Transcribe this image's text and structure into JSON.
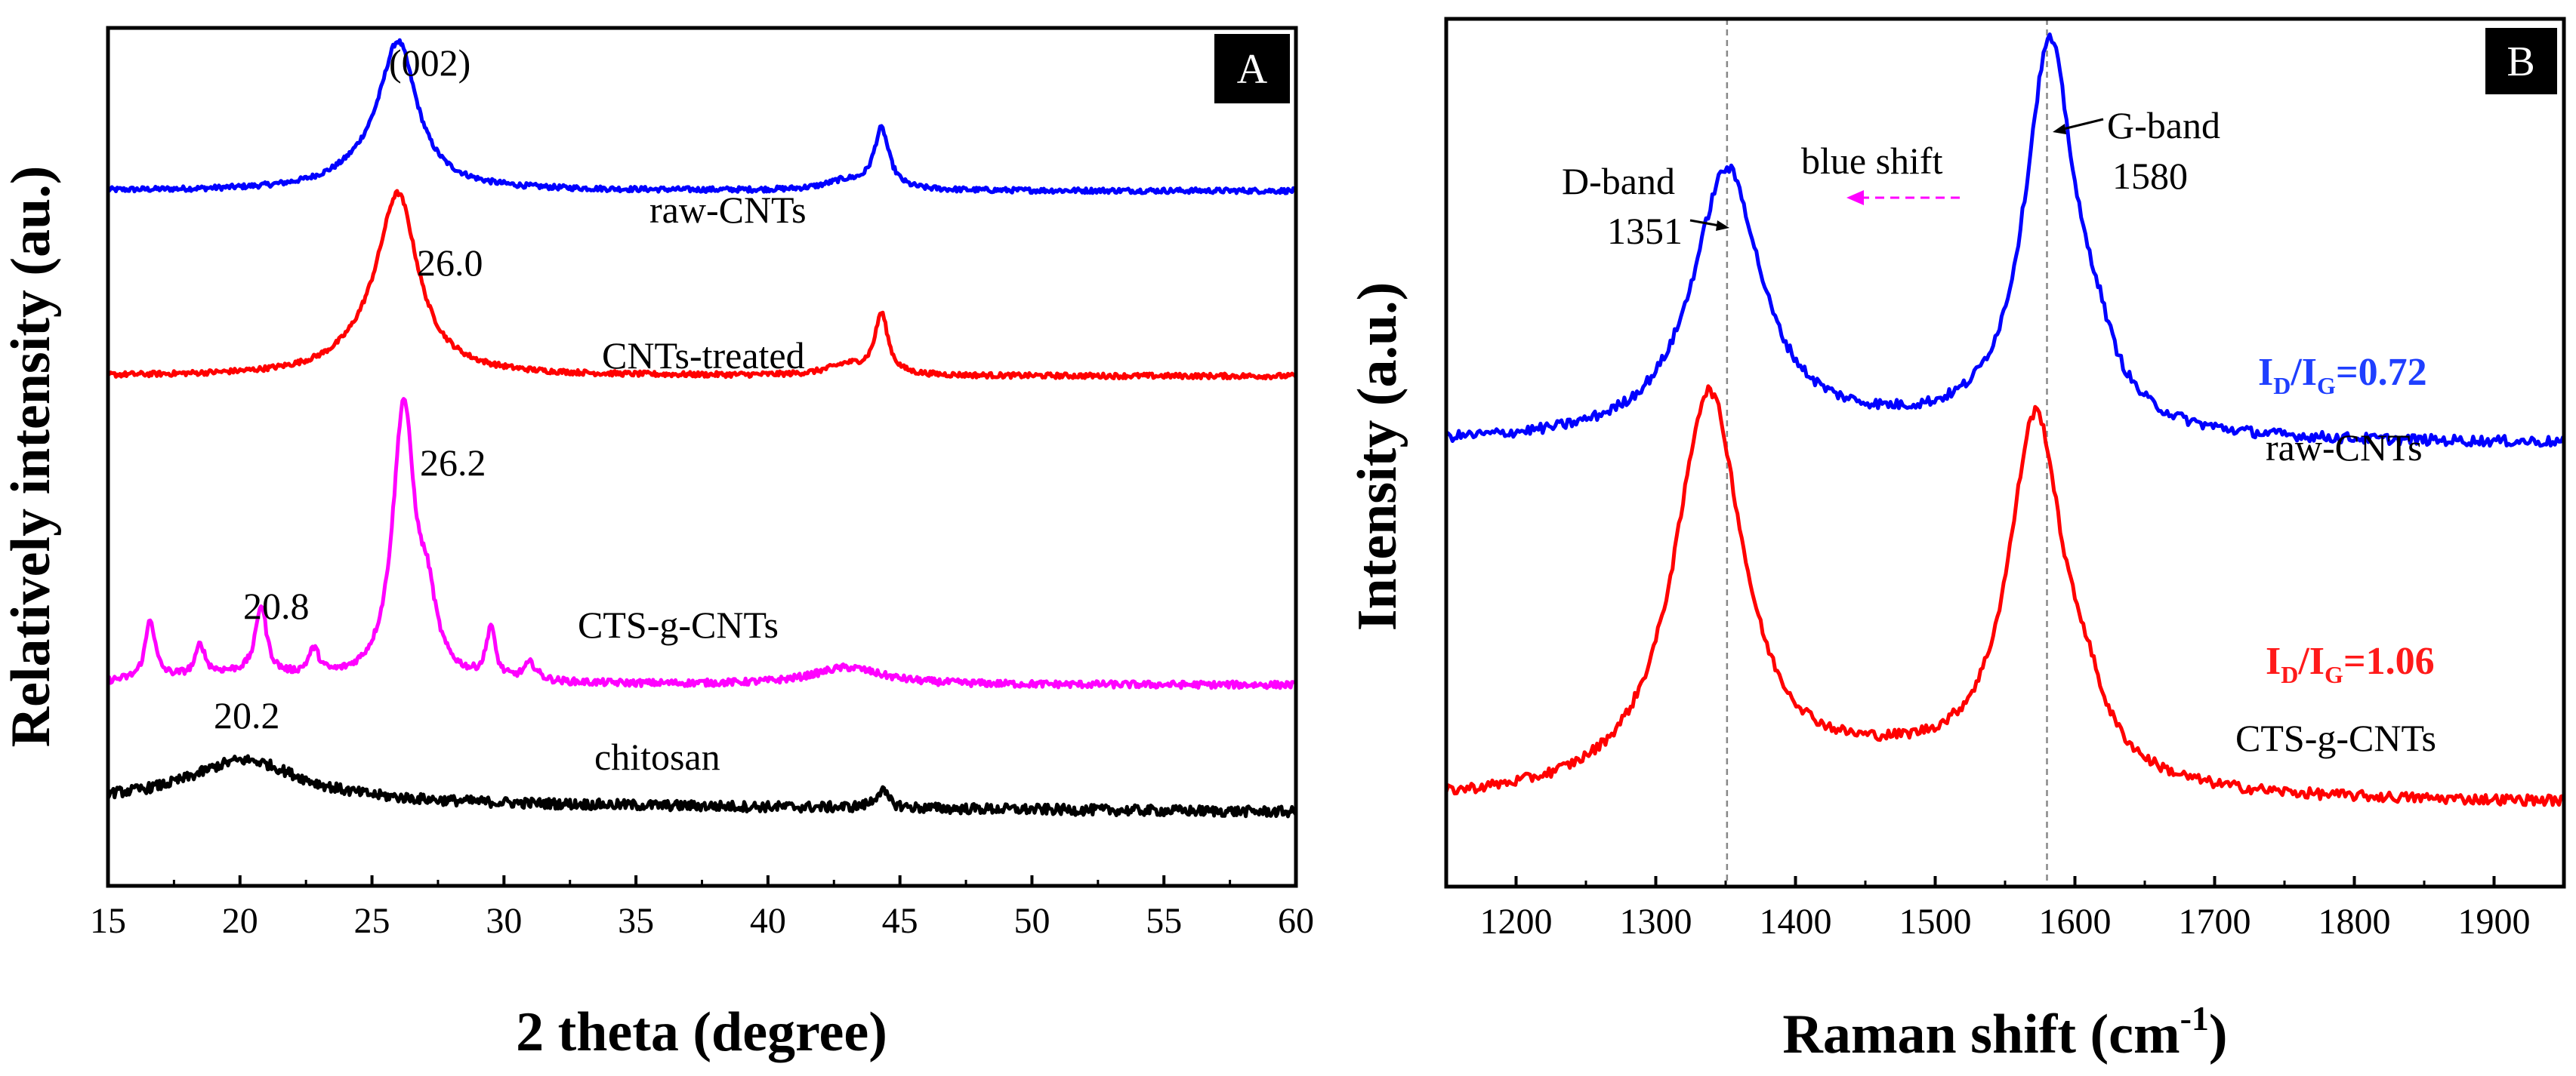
{
  "chart_data": [
    {
      "panel": "A",
      "type": "line",
      "xlabel": "2 theta (degree)",
      "ylabel": "Relatively intensity (au.)",
      "xlim": [
        15,
        60
      ],
      "ylim": [
        0,
        1
      ],
      "xticks": [
        15,
        20,
        25,
        30,
        35,
        40,
        45,
        50,
        55,
        60
      ],
      "yticks_shown": false,
      "series": [
        {
          "name": "raw-CNTs",
          "color": "#0000ff",
          "baseline": 0.81,
          "noise": 0.003,
          "peaks": [
            {
              "x": 26.0,
              "height": 0.16,
              "width": 0.85
            },
            {
              "x": 25.0,
              "height": 0.02,
              "width": 1.6
            },
            {
              "x": 42.9,
              "height": 0.01,
              "width": 0.9
            },
            {
              "x": 44.3,
              "height": 0.07,
              "width": 0.35
            }
          ]
        },
        {
          "name": "CNTs-treated",
          "color": "#ff0000",
          "baseline": 0.594,
          "noise": 0.003,
          "peaks": [
            {
              "x": 26.0,
              "height": 0.19,
              "width": 0.9
            },
            {
              "x": 25.2,
              "height": 0.03,
              "width": 1.5
            },
            {
              "x": 43.0,
              "height": 0.012,
              "width": 0.9
            },
            {
              "x": 44.3,
              "height": 0.07,
              "width": 0.3
            }
          ]
        },
        {
          "name": "CTS-g-CNTs",
          "color": "#ff00ff",
          "baseline": 0.234,
          "noise": 0.004,
          "peaks": [
            {
              "x": 16.6,
              "height": 0.07,
              "width": 0.22
            },
            {
              "x": 18.5,
              "height": 0.035,
              "width": 0.2
            },
            {
              "x": 20.8,
              "height": 0.08,
              "width": 0.25
            },
            {
              "x": 22.8,
              "height": 0.03,
              "width": 0.25
            },
            {
              "x": 26.2,
              "height": 0.32,
              "width": 0.5
            },
            {
              "x": 27.1,
              "height": 0.07,
              "width": 0.4
            },
            {
              "x": 29.5,
              "height": 0.06,
              "width": 0.2
            },
            {
              "x": 31.0,
              "height": 0.02,
              "width": 0.3
            },
            {
              "x": 43.0,
              "height": 0.02,
              "width": 1.6
            },
            {
              "x": 19.5,
              "height": 0.012,
              "width": 3.0
            }
          ]
        },
        {
          "name": "chitosan",
          "color": "#000000",
          "baseline": 0.098,
          "noise": 0.006,
          "peaks": [
            {
              "x": 20.2,
              "height": 0.05,
              "width": 2.6
            },
            {
              "x": 44.3,
              "height": 0.02,
              "width": 0.3
            }
          ]
        }
      ],
      "annotations": [
        "(002)",
        "26.0",
        "26.2",
        "20.8",
        "20.2"
      ],
      "panel_label": "A"
    },
    {
      "panel": "B",
      "type": "line",
      "xlabel": "Raman shift (cm",
      "xlabel_sup": "-1",
      "xlabel_end": ")",
      "ylabel": "Intensity (a.u.)",
      "xlim": [
        1150,
        1950
      ],
      "ylim": [
        0,
        1
      ],
      "xticks": [
        1200,
        1300,
        1400,
        1500,
        1600,
        1700,
        1800,
        1900
      ],
      "yticks_shown": false,
      "reference_lines": [
        1351,
        1580
      ],
      "series": [
        {
          "name": "raw-CNTs",
          "color": "#0000ff",
          "baseline": 0.51,
          "noise": 0.006,
          "peaks": [
            {
              "x": 1351,
              "height": 0.31,
              "width": 30
            },
            {
              "x": 1582,
              "height": 0.45,
              "width": 22
            },
            {
              "x": 1615,
              "height": 0.05,
              "width": 15
            },
            {
              "x": 1460,
              "height": 0.01,
              "width": 90
            }
          ]
        },
        {
          "name": "CTS-g-CNTs",
          "color": "#ff0000",
          "baseline": 0.095,
          "noise": 0.006,
          "peaks": [
            {
              "x": 1338,
              "height": 0.46,
              "width": 30
            },
            {
              "x": 1572,
              "height": 0.42,
              "width": 24
            },
            {
              "x": 1607,
              "height": 0.05,
              "width": 16
            },
            {
              "x": 1470,
              "height": 0.035,
              "width": 100
            }
          ]
        }
      ],
      "annotations": {
        "d_band": "D-band",
        "d_band_value": "1351",
        "g_band": "G-band",
        "g_band_value": "1580",
        "shift_label": "blue shift",
        "raw_label": "raw-CNTs",
        "cts_label": "CTS-g-CNTs",
        "ratio_raw": {
          "I1": "I",
          "sub1": "D",
          "slash": "/I",
          "sub2": "G",
          "value": "=0.72"
        },
        "ratio_cts": {
          "I1": "I",
          "sub1": "D",
          "slash": "/I",
          "sub2": "G",
          "value": "=1.06"
        }
      },
      "panel_label": "B"
    }
  ]
}
